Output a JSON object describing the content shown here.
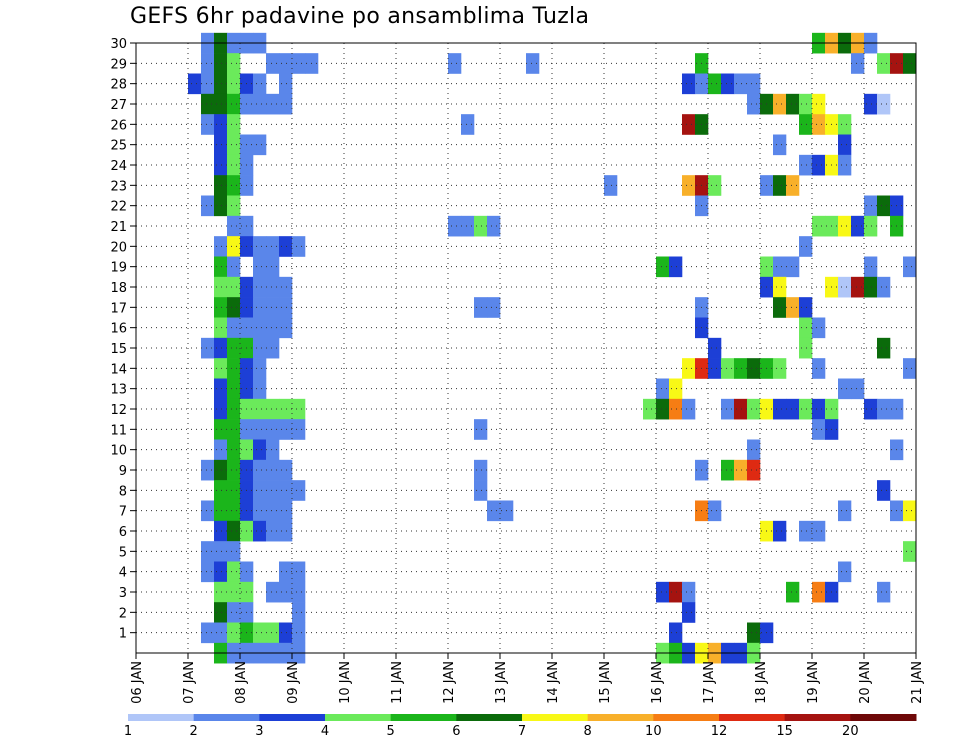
{
  "chart_data": {
    "type": "heatmap",
    "title": "GEFS 6hr padavine po ansamblima Tuzla",
    "xlabel": "",
    "ylabel": "",
    "x_tick_labels": [
      "06 JAN",
      "07 JAN",
      "08 JAN",
      "09 JAN",
      "10 JAN",
      "11 JAN",
      "12 JAN",
      "13 JAN",
      "14 JAN",
      "15 JAN",
      "16 JAN",
      "17 JAN",
      "18 JAN",
      "19 JAN",
      "20 JAN",
      "21 JAN"
    ],
    "x_range_days": [
      6,
      21
    ],
    "y_tick_labels": [
      "1",
      "2",
      "3",
      "4",
      "5",
      "6",
      "7",
      "8",
      "9",
      "10",
      "11",
      "12",
      "13",
      "14",
      "15",
      "16",
      "17",
      "18",
      "19",
      "20",
      "21",
      "22",
      "23",
      "24",
      "25",
      "26",
      "27",
      "28",
      "29",
      "30"
    ],
    "y_range_members": [
      0,
      30
    ],
    "grid": true,
    "colorbar": {
      "placement": "bottom",
      "labels": [
        "1",
        "2",
        "3",
        "4",
        "5",
        "6",
        "7",
        "8",
        "10",
        "12",
        "15",
        "20"
      ],
      "colors": [
        "#b0c6f8",
        "#5a86ea",
        "#1d3fd6",
        "#6bea5b",
        "#1bb51b",
        "#0b6b0b",
        "#f8f816",
        "#f8b02a",
        "#f67d14",
        "#de2a12",
        "#a51310",
        "#6e0808"
      ]
    },
    "units_note": "",
    "cells": [
      [
        7.25,
        30,
        1
      ],
      [
        7.5,
        30,
        5
      ],
      [
        7.75,
        30,
        1
      ],
      [
        8.0,
        30,
        1
      ],
      [
        8.25,
        30,
        1
      ],
      [
        19.0,
        30,
        4
      ],
      [
        19.25,
        30,
        7
      ],
      [
        19.5,
        30,
        5
      ],
      [
        19.75,
        30,
        7
      ],
      [
        20.0,
        30,
        1
      ],
      [
        7.25,
        29,
        1
      ],
      [
        7.5,
        29,
        5
      ],
      [
        7.75,
        29,
        3
      ],
      [
        8.5,
        29,
        1
      ],
      [
        8.75,
        29,
        1
      ],
      [
        9.0,
        29,
        1
      ],
      [
        9.25,
        29,
        1
      ],
      [
        12.0,
        29,
        1
      ],
      [
        13.5,
        29,
        1
      ],
      [
        16.75,
        29,
        4
      ],
      [
        19.75,
        29,
        1
      ],
      [
        20.25,
        29,
        3
      ],
      [
        20.5,
        29,
        10
      ],
      [
        20.75,
        29,
        5
      ],
      [
        7.0,
        28,
        2
      ],
      [
        7.25,
        28,
        1
      ],
      [
        7.5,
        28,
        5
      ],
      [
        7.75,
        28,
        3
      ],
      [
        8.0,
        28,
        2
      ],
      [
        8.25,
        28,
        1
      ],
      [
        8.75,
        28,
        1
      ],
      [
        16.5,
        28,
        2
      ],
      [
        16.75,
        28,
        1
      ],
      [
        17.0,
        28,
        4
      ],
      [
        17.25,
        28,
        2
      ],
      [
        17.5,
        28,
        1
      ],
      [
        17.75,
        28,
        1
      ],
      [
        7.25,
        27,
        5
      ],
      [
        7.5,
        27,
        5
      ],
      [
        7.75,
        27,
        4
      ],
      [
        8.0,
        27,
        1
      ],
      [
        8.25,
        27,
        1
      ],
      [
        8.5,
        27,
        1
      ],
      [
        8.75,
        27,
        1
      ],
      [
        17.75,
        27,
        1
      ],
      [
        18.0,
        27,
        5
      ],
      [
        18.25,
        27,
        7
      ],
      [
        18.5,
        27,
        5
      ],
      [
        18.75,
        27,
        3
      ],
      [
        19.0,
        27,
        6
      ],
      [
        20.0,
        27,
        2
      ],
      [
        20.25,
        27,
        12
      ],
      [
        7.25,
        26,
        1
      ],
      [
        7.5,
        26,
        2
      ],
      [
        7.75,
        26,
        3
      ],
      [
        12.25,
        26,
        1
      ],
      [
        16.5,
        26,
        10
      ],
      [
        16.75,
        26,
        5
      ],
      [
        18.75,
        26,
        4
      ],
      [
        19.0,
        26,
        7
      ],
      [
        19.25,
        26,
        6
      ],
      [
        19.5,
        26,
        3
      ],
      [
        7.5,
        25,
        2
      ],
      [
        7.75,
        25,
        3
      ],
      [
        8.0,
        25,
        1
      ],
      [
        8.25,
        25,
        1
      ],
      [
        18.25,
        25,
        1
      ],
      [
        19.5,
        25,
        2
      ],
      [
        7.5,
        24,
        2
      ],
      [
        7.75,
        24,
        3
      ],
      [
        8.0,
        24,
        1
      ],
      [
        18.75,
        24,
        1
      ],
      [
        19.0,
        24,
        2
      ],
      [
        19.25,
        24,
        6
      ],
      [
        19.5,
        24,
        1
      ],
      [
        7.5,
        23,
        5
      ],
      [
        7.75,
        23,
        4
      ],
      [
        8.0,
        23,
        1
      ],
      [
        15.0,
        23,
        1
      ],
      [
        16.5,
        23,
        7
      ],
      [
        16.75,
        23,
        10
      ],
      [
        17.0,
        23,
        3
      ],
      [
        18.0,
        23,
        1
      ],
      [
        18.25,
        23,
        5
      ],
      [
        18.5,
        23,
        7
      ],
      [
        7.25,
        22,
        1
      ],
      [
        7.5,
        22,
        5
      ],
      [
        7.75,
        22,
        3
      ],
      [
        16.75,
        22,
        1
      ],
      [
        20.0,
        22,
        1
      ],
      [
        20.25,
        22,
        5
      ],
      [
        20.5,
        22,
        2
      ],
      [
        7.75,
        21,
        1
      ],
      [
        8.0,
        21,
        1
      ],
      [
        12.0,
        21,
        1
      ],
      [
        12.25,
        21,
        1
      ],
      [
        12.5,
        21,
        3
      ],
      [
        12.75,
        21,
        1
      ],
      [
        19.0,
        21,
        3
      ],
      [
        19.25,
        21,
        3
      ],
      [
        19.5,
        21,
        6
      ],
      [
        19.75,
        21,
        2
      ],
      [
        20.0,
        21,
        3
      ],
      [
        20.5,
        21,
        4
      ],
      [
        7.5,
        20,
        1
      ],
      [
        7.75,
        20,
        6
      ],
      [
        8.0,
        20,
        2
      ],
      [
        8.25,
        20,
        1
      ],
      [
        8.5,
        20,
        1
      ],
      [
        8.75,
        20,
        2
      ],
      [
        9.0,
        20,
        1
      ],
      [
        18.75,
        20,
        1
      ],
      [
        7.5,
        19,
        4
      ],
      [
        7.75,
        19,
        1
      ],
      [
        8.25,
        19,
        1
      ],
      [
        8.5,
        19,
        1
      ],
      [
        16.0,
        19,
        4
      ],
      [
        16.25,
        19,
        2
      ],
      [
        18.0,
        19,
        3
      ],
      [
        18.25,
        19,
        1
      ],
      [
        18.5,
        19,
        1
      ],
      [
        20.0,
        19,
        1
      ],
      [
        20.75,
        19,
        1
      ],
      [
        7.5,
        18,
        3
      ],
      [
        7.75,
        18,
        3
      ],
      [
        8.0,
        18,
        2
      ],
      [
        8.25,
        18,
        1
      ],
      [
        8.5,
        18,
        1
      ],
      [
        8.75,
        18,
        1
      ],
      [
        18.0,
        18,
        2
      ],
      [
        18.25,
        18,
        6
      ],
      [
        19.25,
        18,
        6
      ],
      [
        19.5,
        18,
        12
      ],
      [
        19.75,
        18,
        10
      ],
      [
        20.0,
        18,
        5
      ],
      [
        20.25,
        18,
        1
      ],
      [
        7.5,
        17,
        4
      ],
      [
        7.75,
        17,
        5
      ],
      [
        8.0,
        17,
        2
      ],
      [
        8.25,
        17,
        1
      ],
      [
        8.5,
        17,
        1
      ],
      [
        8.75,
        17,
        1
      ],
      [
        12.5,
        17,
        1
      ],
      [
        12.75,
        17,
        1
      ],
      [
        16.75,
        17,
        1
      ],
      [
        18.25,
        17,
        5
      ],
      [
        18.5,
        17,
        7
      ],
      [
        18.75,
        17,
        2
      ],
      [
        7.5,
        16,
        3
      ],
      [
        7.75,
        16,
        1
      ],
      [
        8.0,
        16,
        1
      ],
      [
        8.25,
        16,
        1
      ],
      [
        8.5,
        16,
        1
      ],
      [
        8.75,
        16,
        1
      ],
      [
        16.75,
        16,
        2
      ],
      [
        18.75,
        16,
        3
      ],
      [
        19.0,
        16,
        1
      ],
      [
        7.25,
        15,
        1
      ],
      [
        7.5,
        15,
        2
      ],
      [
        7.75,
        15,
        4
      ],
      [
        8.0,
        15,
        4
      ],
      [
        8.25,
        15,
        1
      ],
      [
        8.5,
        15,
        1
      ],
      [
        17.0,
        15,
        2
      ],
      [
        18.75,
        15,
        3
      ],
      [
        20.25,
        15,
        5
      ],
      [
        7.5,
        14,
        3
      ],
      [
        7.75,
        14,
        4
      ],
      [
        8.0,
        14,
        2
      ],
      [
        8.25,
        14,
        1
      ],
      [
        16.5,
        14,
        6
      ],
      [
        16.75,
        14,
        9
      ],
      [
        17.0,
        14,
        2
      ],
      [
        17.25,
        14,
        3
      ],
      [
        17.5,
        14,
        4
      ],
      [
        17.75,
        14,
        5
      ],
      [
        18.0,
        14,
        4
      ],
      [
        18.25,
        14,
        3
      ],
      [
        19.0,
        14,
        1
      ],
      [
        20.75,
        14,
        1
      ],
      [
        7.5,
        13,
        2
      ],
      [
        7.75,
        13,
        4
      ],
      [
        8.0,
        13,
        2
      ],
      [
        8.25,
        13,
        1
      ],
      [
        16.0,
        13,
        1
      ],
      [
        16.25,
        13,
        6
      ],
      [
        19.5,
        13,
        1
      ],
      [
        19.75,
        13,
        1
      ],
      [
        7.5,
        12,
        2
      ],
      [
        7.75,
        12,
        4
      ],
      [
        8.0,
        12,
        3
      ],
      [
        8.25,
        12,
        3
      ],
      [
        8.5,
        12,
        3
      ],
      [
        8.75,
        12,
        3
      ],
      [
        9.0,
        12,
        3
      ],
      [
        15.75,
        12,
        3
      ],
      [
        16.0,
        12,
        5
      ],
      [
        16.25,
        12,
        8
      ],
      [
        16.5,
        12,
        1
      ],
      [
        17.25,
        12,
        1
      ],
      [
        17.5,
        12,
        10
      ],
      [
        17.75,
        12,
        3
      ],
      [
        18.0,
        12,
        6
      ],
      [
        18.25,
        12,
        2
      ],
      [
        18.5,
        12,
        2
      ],
      [
        18.75,
        12,
        3
      ],
      [
        19.0,
        12,
        2
      ],
      [
        19.25,
        12,
        3
      ],
      [
        20.0,
        12,
        2
      ],
      [
        20.25,
        12,
        1
      ],
      [
        20.5,
        12,
        1
      ],
      [
        7.5,
        11,
        4
      ],
      [
        7.75,
        11,
        4
      ],
      [
        8.0,
        11,
        1
      ],
      [
        8.25,
        11,
        1
      ],
      [
        8.5,
        11,
        1
      ],
      [
        8.75,
        11,
        1
      ],
      [
        9.0,
        11,
        1
      ],
      [
        12.5,
        11,
        1
      ],
      [
        19.0,
        11,
        1
      ],
      [
        19.25,
        11,
        2
      ],
      [
        7.5,
        10,
        1
      ],
      [
        7.75,
        10,
        4
      ],
      [
        8.0,
        10,
        3
      ],
      [
        8.25,
        10,
        2
      ],
      [
        8.5,
        10,
        1
      ],
      [
        17.75,
        10,
        1
      ],
      [
        20.5,
        10,
        1
      ],
      [
        7.25,
        9,
        1
      ],
      [
        7.5,
        9,
        5
      ],
      [
        7.75,
        9,
        4
      ],
      [
        8.0,
        9,
        2
      ],
      [
        8.25,
        9,
        1
      ],
      [
        8.5,
        9,
        1
      ],
      [
        8.75,
        9,
        1
      ],
      [
        12.5,
        9,
        1
      ],
      [
        16.75,
        9,
        1
      ],
      [
        17.25,
        9,
        4
      ],
      [
        17.5,
        9,
        7
      ],
      [
        17.75,
        9,
        9
      ],
      [
        7.5,
        8,
        4
      ],
      [
        7.75,
        8,
        4
      ],
      [
        8.0,
        8,
        2
      ],
      [
        8.25,
        8,
        1
      ],
      [
        8.5,
        8,
        1
      ],
      [
        8.75,
        8,
        1
      ],
      [
        9.0,
        8,
        1
      ],
      [
        12.5,
        8,
        1
      ],
      [
        20.25,
        8,
        2
      ],
      [
        7.25,
        7,
        1
      ],
      [
        7.5,
        7,
        4
      ],
      [
        7.75,
        7,
        4
      ],
      [
        8.0,
        7,
        2
      ],
      [
        8.25,
        7,
        1
      ],
      [
        8.5,
        7,
        1
      ],
      [
        8.75,
        7,
        1
      ],
      [
        12.75,
        7,
        1
      ],
      [
        13.0,
        7,
        1
      ],
      [
        16.75,
        7,
        8
      ],
      [
        17.0,
        7,
        1
      ],
      [
        19.5,
        7,
        1
      ],
      [
        20.5,
        7,
        1
      ],
      [
        20.75,
        7,
        6
      ],
      [
        7.5,
        6,
        2
      ],
      [
        7.75,
        6,
        5
      ],
      [
        8.0,
        6,
        3
      ],
      [
        8.25,
        6,
        2
      ],
      [
        8.5,
        6,
        1
      ],
      [
        8.75,
        6,
        1
      ],
      [
        18.0,
        6,
        6
      ],
      [
        18.25,
        6,
        2
      ],
      [
        18.75,
        6,
        1
      ],
      [
        19.0,
        6,
        1
      ],
      [
        7.25,
        5,
        1
      ],
      [
        7.5,
        5,
        1
      ],
      [
        7.75,
        5,
        1
      ],
      [
        20.75,
        5,
        3
      ],
      [
        7.25,
        4,
        1
      ],
      [
        7.5,
        4,
        2
      ],
      [
        7.75,
        4,
        3
      ],
      [
        8.0,
        4,
        1
      ],
      [
        8.75,
        4,
        1
      ],
      [
        9.0,
        4,
        1
      ],
      [
        19.5,
        4,
        1
      ],
      [
        7.5,
        3,
        3
      ],
      [
        7.75,
        3,
        3
      ],
      [
        8.0,
        3,
        3
      ],
      [
        8.5,
        3,
        1
      ],
      [
        8.75,
        3,
        1
      ],
      [
        9.0,
        3,
        1
      ],
      [
        16.0,
        3,
        2
      ],
      [
        16.25,
        3,
        10
      ],
      [
        16.5,
        3,
        1
      ],
      [
        18.5,
        3,
        4
      ],
      [
        19.0,
        3,
        8
      ],
      [
        19.25,
        3,
        2
      ],
      [
        20.25,
        3,
        1
      ],
      [
        7.5,
        2,
        5
      ],
      [
        7.75,
        2,
        1
      ],
      [
        8.0,
        2,
        1
      ],
      [
        9.0,
        2,
        1
      ],
      [
        16.5,
        2,
        2
      ],
      [
        7.25,
        1,
        1
      ],
      [
        7.5,
        1,
        1
      ],
      [
        7.75,
        1,
        3
      ],
      [
        8.0,
        1,
        4
      ],
      [
        8.25,
        1,
        3
      ],
      [
        8.5,
        1,
        3
      ],
      [
        8.75,
        1,
        2
      ],
      [
        9.0,
        1,
        1
      ],
      [
        16.25,
        1,
        2
      ],
      [
        17.75,
        1,
        5
      ],
      [
        18.0,
        1,
        2
      ],
      [
        7.5,
        0,
        4
      ],
      [
        7.75,
        0,
        1
      ],
      [
        8.0,
        0,
        1
      ],
      [
        8.25,
        0,
        1
      ],
      [
        8.5,
        0,
        1
      ],
      [
        8.75,
        0,
        1
      ],
      [
        9.0,
        0,
        1
      ],
      [
        16.0,
        0,
        3
      ],
      [
        16.25,
        0,
        4
      ],
      [
        16.5,
        0,
        2
      ],
      [
        16.75,
        0,
        6
      ],
      [
        17.0,
        0,
        7
      ],
      [
        17.25,
        0,
        2
      ],
      [
        17.5,
        0,
        2
      ],
      [
        17.75,
        0,
        3
      ]
    ]
  }
}
